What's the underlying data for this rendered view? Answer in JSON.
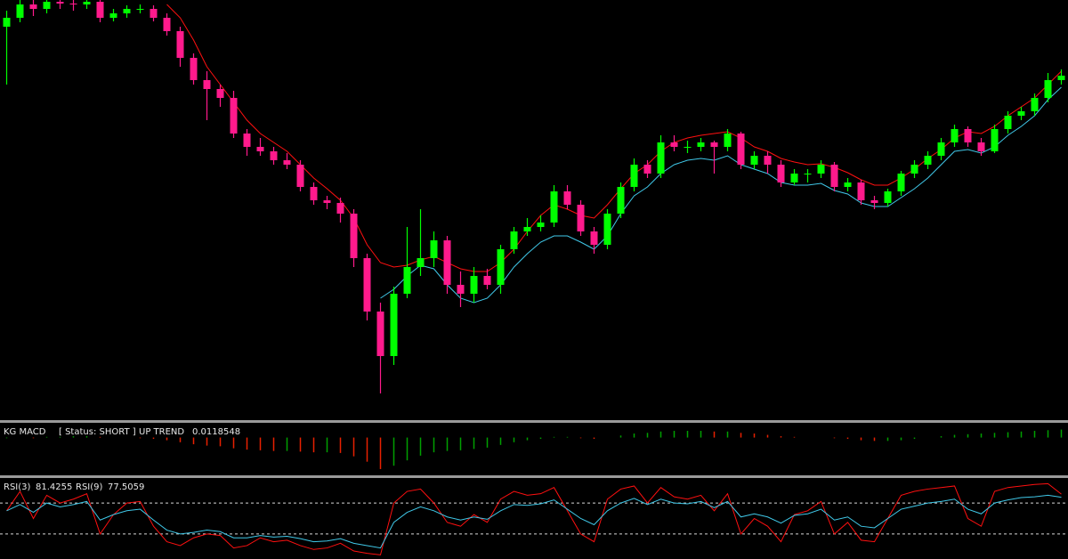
{
  "chart_data": [
    {
      "type": "candlestick",
      "up_color": "#00ff00",
      "down_color": "#ff1a8c",
      "ylim": [
        0,
        470
      ],
      "ohlc": [
        [
          440,
          458,
          375,
          450
        ],
        [
          450,
          470,
          445,
          465
        ],
        [
          465,
          470,
          452,
          460
        ],
        [
          460,
          470,
          455,
          468
        ],
        [
          468,
          470,
          460,
          466
        ],
        [
          466,
          470,
          458,
          465
        ],
        [
          465,
          470,
          460,
          468
        ],
        [
          468,
          470,
          445,
          450
        ],
        [
          450,
          460,
          446,
          455
        ],
        [
          455,
          464,
          450,
          460
        ],
        [
          460,
          465,
          455,
          460
        ],
        [
          460,
          464,
          446,
          450
        ],
        [
          450,
          455,
          430,
          435
        ],
        [
          435,
          440,
          395,
          405
        ],
        [
          405,
          410,
          375,
          380
        ],
        [
          380,
          390,
          335,
          370
        ],
        [
          370,
          375,
          350,
          360
        ],
        [
          360,
          368,
          315,
          320
        ],
        [
          320,
          325,
          295,
          305
        ],
        [
          305,
          315,
          295,
          300
        ],
        [
          300,
          305,
          285,
          290
        ],
        [
          290,
          298,
          280,
          285
        ],
        [
          285,
          290,
          255,
          260
        ],
        [
          260,
          265,
          240,
          245
        ],
        [
          245,
          250,
          235,
          242
        ],
        [
          242,
          248,
          220,
          230
        ],
        [
          230,
          235,
          170,
          180
        ],
        [
          180,
          185,
          110,
          120
        ],
        [
          120,
          130,
          28,
          70
        ],
        [
          70,
          148,
          60,
          140
        ],
        [
          140,
          215,
          135,
          170
        ],
        [
          170,
          235,
          160,
          180
        ],
        [
          180,
          210,
          170,
          200
        ],
        [
          200,
          205,
          140,
          150
        ],
        [
          150,
          165,
          125,
          140
        ],
        [
          140,
          170,
          130,
          160
        ],
        [
          160,
          168,
          145,
          150
        ],
        [
          150,
          195,
          140,
          190
        ],
        [
          190,
          215,
          185,
          210
        ],
        [
          210,
          225,
          205,
          215
        ],
        [
          215,
          228,
          210,
          220
        ],
        [
          220,
          262,
          215,
          255
        ],
        [
          255,
          262,
          235,
          240
        ],
        [
          240,
          245,
          205,
          210
        ],
        [
          210,
          215,
          185,
          195
        ],
        [
          195,
          235,
          190,
          230
        ],
        [
          230,
          265,
          225,
          260
        ],
        [
          260,
          292,
          255,
          285
        ],
        [
          285,
          290,
          270,
          275
        ],
        [
          275,
          318,
          270,
          310
        ],
        [
          310,
          318,
          300,
          305
        ],
        [
          305,
          312,
          298,
          305
        ],
        [
          305,
          315,
          300,
          310
        ],
        [
          310,
          312,
          275,
          305
        ],
        [
          305,
          325,
          300,
          320
        ],
        [
          320,
          322,
          280,
          285
        ],
        [
          285,
          300,
          280,
          295
        ],
        [
          295,
          300,
          275,
          285
        ],
        [
          285,
          290,
          260,
          265
        ],
        [
          265,
          280,
          262,
          275
        ],
        [
          275,
          280,
          265,
          275
        ],
        [
          275,
          290,
          270,
          285
        ],
        [
          285,
          288,
          255,
          260
        ],
        [
          260,
          270,
          255,
          265
        ],
        [
          265,
          268,
          240,
          245
        ],
        [
          245,
          250,
          235,
          242
        ],
        [
          242,
          258,
          238,
          255
        ],
        [
          255,
          278,
          250,
          275
        ],
        [
          275,
          290,
          270,
          285
        ],
        [
          285,
          300,
          280,
          295
        ],
        [
          295,
          315,
          290,
          310
        ],
        [
          310,
          330,
          305,
          325
        ],
        [
          325,
          328,
          305,
          310
        ],
        [
          310,
          315,
          295,
          300
        ],
        [
          300,
          330,
          298,
          325
        ],
        [
          325,
          345,
          320,
          340
        ],
        [
          340,
          350,
          335,
          345
        ],
        [
          345,
          365,
          340,
          360
        ],
        [
          360,
          388,
          355,
          380
        ],
        [
          380,
          392,
          375,
          385
        ]
      ],
      "series": [
        {
          "color": "#ff1010",
          "values": [
            null,
            null,
            null,
            null,
            null,
            null,
            null,
            null,
            null,
            null,
            null,
            null,
            465,
            450,
            425,
            395,
            375,
            355,
            335,
            320,
            310,
            300,
            285,
            270,
            258,
            245,
            225,
            195,
            175,
            170,
            172,
            178,
            182,
            175,
            168,
            165,
            165,
            175,
            190,
            210,
            228,
            240,
            235,
            228,
            225,
            240,
            258,
            275,
            285,
            300,
            310,
            315,
            318,
            320,
            322,
            315,
            305,
            300,
            292,
            288,
            285,
            286,
            282,
            276,
            268,
            262,
            262,
            270,
            280,
            292,
            302,
            315,
            322,
            320,
            328,
            340,
            350,
            360,
            375,
            390
          ]
        },
        {
          "color": "#40c8e8",
          "values": [
            null,
            null,
            null,
            null,
            null,
            null,
            null,
            null,
            null,
            null,
            null,
            null,
            null,
            null,
            null,
            null,
            null,
            null,
            null,
            null,
            null,
            null,
            null,
            null,
            null,
            null,
            null,
            null,
            135,
            145,
            160,
            172,
            168,
            150,
            135,
            130,
            135,
            150,
            170,
            185,
            198,
            205,
            205,
            198,
            190,
            205,
            230,
            250,
            260,
            275,
            285,
            290,
            292,
            290,
            295,
            285,
            280,
            275,
            265,
            262,
            262,
            264,
            256,
            252,
            242,
            238,
            238,
            248,
            258,
            270,
            285,
            300,
            302,
            298,
            305,
            318,
            328,
            340,
            358,
            372
          ]
        }
      ]
    },
    {
      "type": "bar",
      "title": "KG MACD",
      "status": "[ Status: SHORT ]",
      "trend": "UP TREND",
      "up_color": "#00a000",
      "down_color": "#e82000",
      "ylim": [
        -0.055,
        0.018
      ],
      "values": [
        -0.001,
        0,
        -0.001,
        0.001,
        0.001,
        0.002,
        0.002,
        0.001,
        0,
        0,
        -0.001,
        -0.002,
        -0.004,
        -0.007,
        -0.01,
        -0.012,
        -0.013,
        -0.016,
        -0.018,
        -0.019,
        -0.02,
        -0.02,
        -0.021,
        -0.022,
        -0.022,
        -0.023,
        -0.028,
        -0.036,
        -0.047,
        -0.042,
        -0.034,
        -0.027,
        -0.022,
        -0.02,
        -0.019,
        -0.017,
        -0.015,
        -0.011,
        -0.007,
        -0.004,
        -0.002,
        0.001,
        0.001,
        -0.001,
        -0.002,
        0,
        0.003,
        0.006,
        0.007,
        0.009,
        0.01,
        0.01,
        0.01,
        0.009,
        0.009,
        0.007,
        0.006,
        0.004,
        0.002,
        0.001,
        0,
        0,
        -0.001,
        -0.002,
        -0.004,
        -0.005,
        -0.005,
        -0.004,
        -0.002,
        0,
        0.002,
        0.004,
        0.005,
        0.006,
        0.007,
        0.008,
        0.009,
        0.01,
        0.011,
        0.0118548
      ]
    },
    {
      "type": "line",
      "ylim": [
        0,
        100
      ],
      "levels": [
        70,
        30
      ],
      "series": [
        {
          "name": "RSI(3)",
          "color": "#ff1010",
          "values": [
            60,
            85,
            50,
            80,
            70,
            75,
            82,
            30,
            55,
            70,
            72,
            40,
            20,
            15,
            25,
            30,
            28,
            12,
            15,
            25,
            20,
            22,
            15,
            10,
            12,
            18,
            8,
            5,
            3,
            70,
            85,
            88,
            70,
            45,
            40,
            55,
            45,
            75,
            85,
            80,
            82,
            90,
            60,
            30,
            20,
            75,
            88,
            92,
            70,
            90,
            78,
            75,
            80,
            60,
            82,
            30,
            50,
            40,
            20,
            55,
            60,
            72,
            30,
            45,
            22,
            20,
            50,
            80,
            85,
            88,
            90,
            92,
            50,
            40,
            85,
            90,
            92,
            94,
            95,
            81.4255
          ]
        },
        {
          "name": "RSI(9)",
          "color": "#40c8e8",
          "values": [
            60,
            68,
            58,
            70,
            65,
            68,
            72,
            48,
            55,
            60,
            62,
            48,
            35,
            30,
            32,
            35,
            33,
            25,
            25,
            28,
            26,
            27,
            24,
            20,
            21,
            24,
            18,
            15,
            12,
            45,
            58,
            65,
            60,
            52,
            48,
            52,
            49,
            60,
            68,
            67,
            69,
            74,
            62,
            50,
            42,
            60,
            70,
            76,
            68,
            75,
            70,
            69,
            72,
            64,
            72,
            52,
            56,
            52,
            44,
            54,
            56,
            62,
            48,
            52,
            40,
            38,
            50,
            62,
            66,
            70,
            72,
            75,
            62,
            56,
            70,
            74,
            77,
            78,
            80,
            77.5059
          ]
        }
      ]
    }
  ]
}
